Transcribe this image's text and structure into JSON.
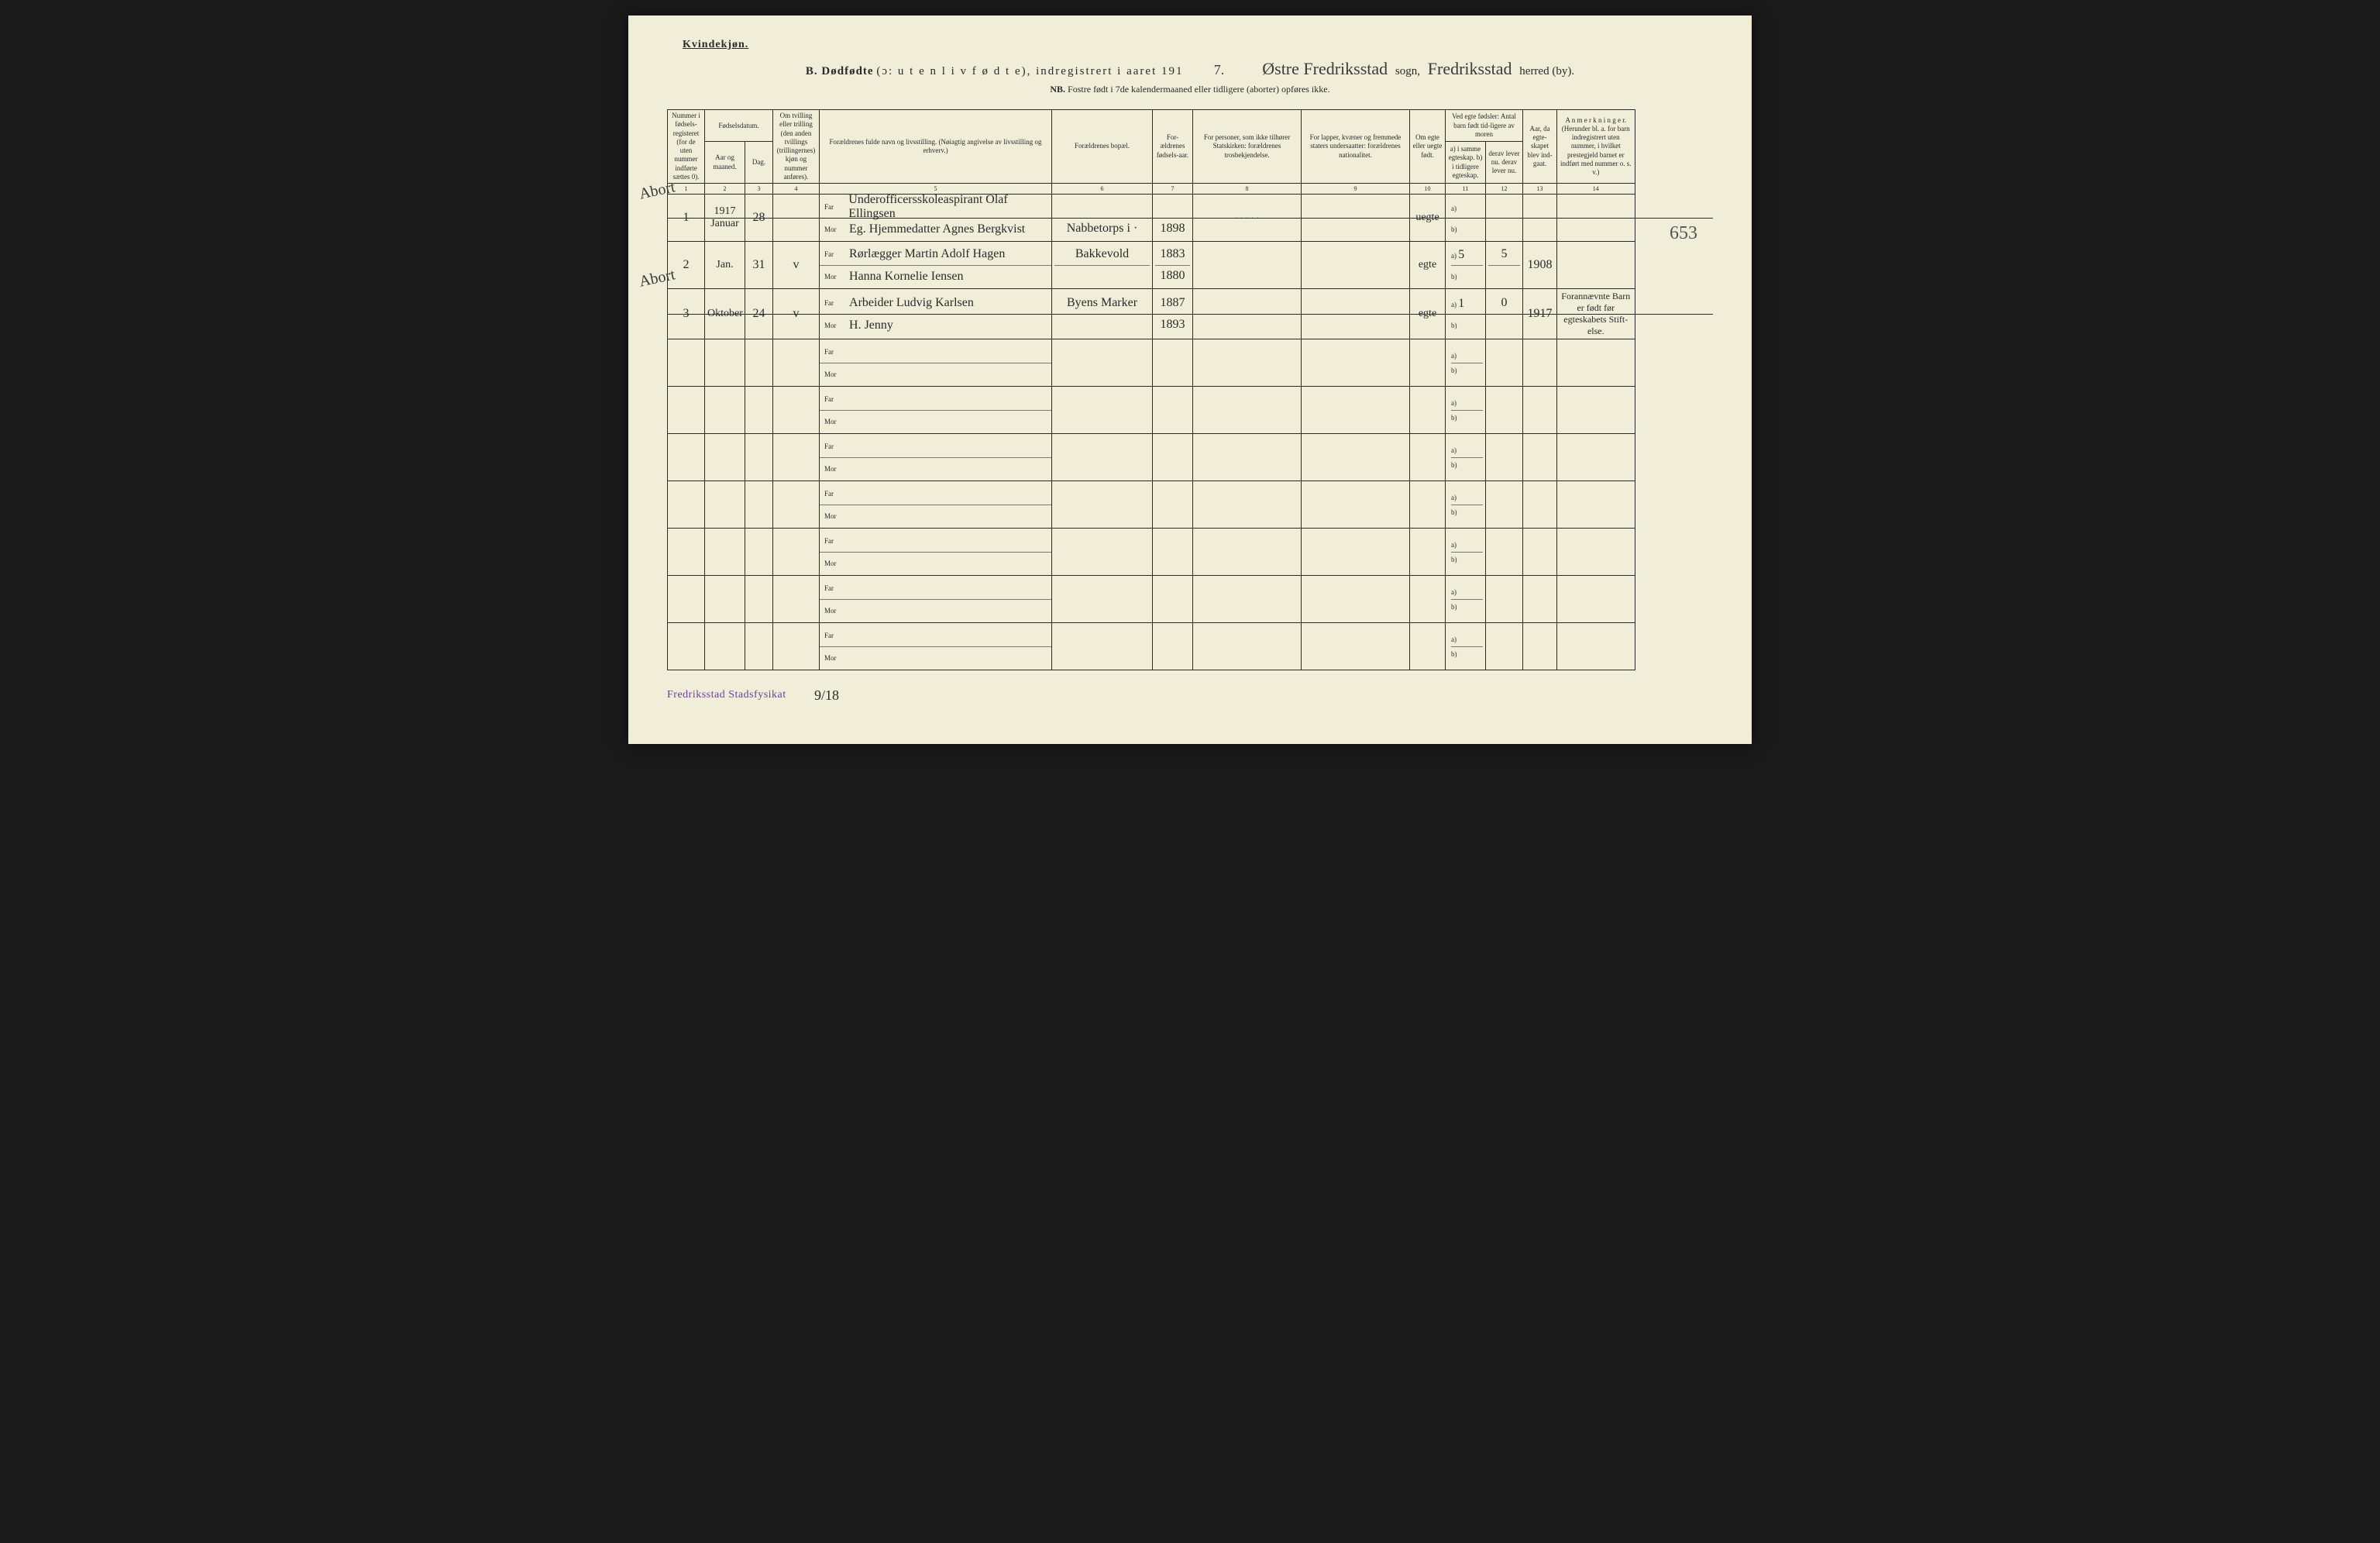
{
  "top_label": "Kvindekjøn.",
  "title": {
    "prefix_bold": "B.  Dødfødte",
    "prefix_light": " (ɔ:  u t e n  l i v  f ø d t e),  indregistrert i aaret 191",
    "year_suffix": "7.",
    "sogn_value": "Østre Fredriksstad",
    "sogn_label": "sogn,",
    "herred_value": "Fredriksstad",
    "herred_label": "herred (by)."
  },
  "nb_line": {
    "bold": "NB.",
    "text": "  Fostre født i 7de kalendermaaned eller tidligere (aborter) opføres ikke."
  },
  "headers": {
    "c1": "Nummer i fødsels-registeret (for de uten nummer indførte sættes 0).",
    "c2_group": "Fødselsdatum.",
    "c2a": "Aar og maaned.",
    "c2b": "Dag.",
    "c3": "Om tvilling eller trilling (den anden tvillings (trillingernes) kjøn og nummer anføres).",
    "c4": "Forældrenes fulde navn og livsstilling. (Nøiagtig angivelse av livsstilling og erhverv.)",
    "c5": "Forældrenes bopæl.",
    "c6": "For-ældrenes fødsels-aar.",
    "c7": "For personer, som ikke tilhører Statskirken: forældrenes trosbekjendelse.",
    "c8": "For lapper, kvæner og fremmede staters undersaatter: forældrenes nationalitet.",
    "c9": "Om egte eller uegte født.",
    "c10_group": "Ved egte fødsler: Antal barn født tid-ligere av moren",
    "c10a": "a) i samme egteskap.  b) i tidligere egteskap.",
    "c10b": "derav lever nu.  derav lever nu.",
    "c11": "Aar, da egte-skapet blev ind-gaat.",
    "c12": "A n m e r k n i n g e r. (Herunder bl. a. for barn indregistrert uten nummer, i hvilket prestegjeld barnet er indført med nummer o. s. v.)"
  },
  "colnums": [
    "1",
    "2",
    "3",
    "4",
    "5",
    "6",
    "7",
    "8",
    "9",
    "10",
    "11",
    "12",
    "13",
    "14"
  ],
  "far_label": "Far",
  "mor_label": "Mor",
  "ab_a": "a)",
  "ab_b": "b)",
  "rows": [
    {
      "margin": "Abort",
      "num": "1",
      "year_month": "1917 Januar",
      "day": "28",
      "twin": "",
      "far": "Underofficersskoleaspirant Olaf Ellingsen",
      "mor": "Eg. Hjemmedatter Agnes Bergkvist",
      "bopael_far": "",
      "bopael_mor": "Nabbetorps i ·",
      "faar_far": "",
      "faar_mor": "1898",
      "tros": "· · · · ·",
      "nat": "",
      "egte": "uegte",
      "a_val": "",
      "a_lev": "",
      "b_val": "",
      "b_lev": "",
      "indgaat": "",
      "anm": "",
      "struck": true
    },
    {
      "margin": "",
      "num": "2",
      "year_month": "Jan.",
      "day": "31",
      "twin": "v",
      "far": "Rørlægger Martin Adolf Hagen",
      "mor": "Hanna Kornelie Iensen",
      "bopael_far": "Bakkevold",
      "bopael_mor": "",
      "faar_far": "1883",
      "faar_mor": "1880",
      "tros": "",
      "nat": "",
      "egte": "egte",
      "a_val": "5",
      "a_lev": "5",
      "b_val": "",
      "b_lev": "",
      "indgaat": "1908",
      "anm": "",
      "struck": false
    },
    {
      "margin": "Abort",
      "num": "3",
      "year_month": "Oktober",
      "day": "24",
      "twin": "v",
      "far": "Arbeider Ludvig Karlsen",
      "mor": "H. Jenny",
      "bopael_far": "Byens Marker",
      "bopael_mor": "",
      "faar_far": "1887",
      "faar_mor": "1893",
      "tros": "",
      "nat": "",
      "egte": "egte",
      "a_val": "1",
      "a_lev": "0",
      "b_val": "",
      "b_lev": "",
      "indgaat": "1917",
      "anm": "Forannævnte Barn er født før egteskabets Stift-else.",
      "struck": true
    }
  ],
  "empty_rows": 7,
  "stamp": "Fredriksstad Stadsfysikat",
  "sign": "9/18",
  "page_number": "653"
}
